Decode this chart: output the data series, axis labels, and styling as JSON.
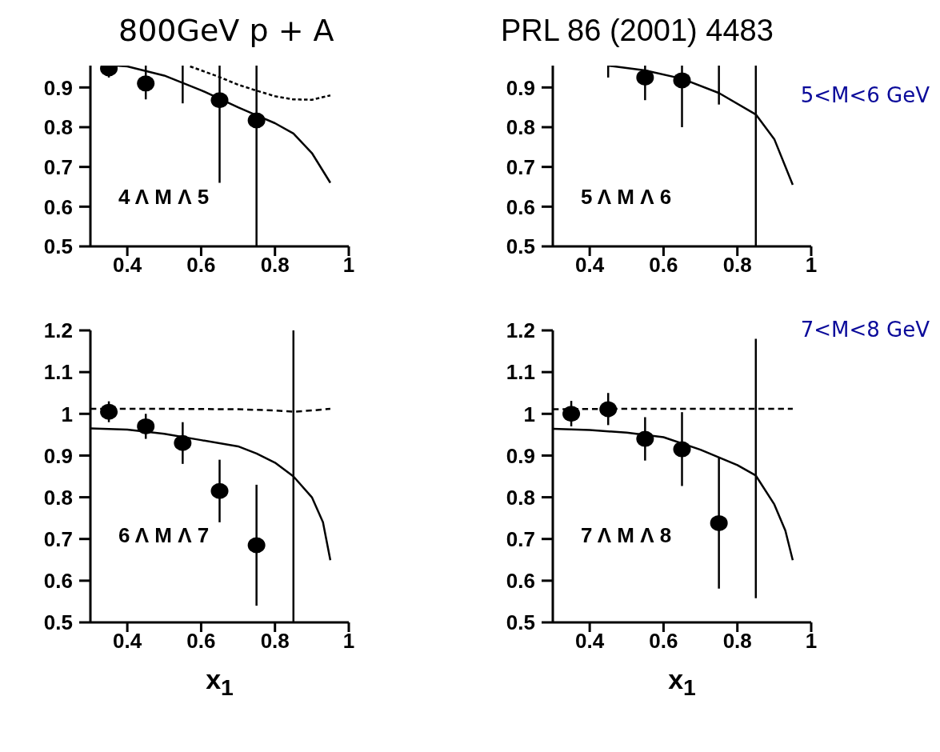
{
  "chart_data": [
    {
      "type": "scatter",
      "title": "800GeV p + A",
      "xlim": [
        0.3,
        1
      ],
      "xticks": [
        0.4,
        0.6,
        0.8,
        1
      ],
      "ylim": [
        0.5,
        0.955
      ],
      "yticks": [
        0.5,
        0.6,
        0.7,
        0.8,
        0.9
      ],
      "annotations": [
        "4 Λ M Λ 5"
      ],
      "series": [
        {
          "type": "scatter",
          "color": "#000000",
          "marker": "circle",
          "x": [
            0.35,
            0.45,
            0.65,
            0.75
          ],
          "values": [
            0.948,
            0.91,
            0.868,
            0.817
          ],
          "errors": [
            [
              0.925,
              0.948
            ],
            [
              0.87,
              0.955
            ],
            [
              0.66,
              0.955
            ],
            [
              0.5,
              0.955
            ]
          ]
        },
        {
          "type": "line",
          "color": "#000000",
          "line_style": "solid",
          "x": [
            0.55,
            0.55
          ],
          "values": [
            0.86,
            0.955
          ]
        },
        {
          "type": "line",
          "color": "#000000",
          "line_style": "solid",
          "x": [
            0.37,
            0.4,
            0.5,
            0.6,
            0.7,
            0.75,
            0.8,
            0.85,
            0.9,
            0.95
          ],
          "values": [
            0.955,
            0.953,
            0.93,
            0.893,
            0.85,
            0.83,
            0.81,
            0.784,
            0.735,
            0.66
          ]
        },
        {
          "type": "line",
          "color": "#000000",
          "line_style": "dashed",
          "x": [
            0.57,
            0.6,
            0.65,
            0.7,
            0.75,
            0.8,
            0.85,
            0.9,
            0.95
          ],
          "values": [
            0.953,
            0.943,
            0.926,
            0.907,
            0.892,
            0.878,
            0.87,
            0.869,
            0.88
          ]
        }
      ]
    },
    {
      "type": "scatter",
      "title": "PRL 86 (2001) 4483",
      "xlim": [
        0.3,
        1
      ],
      "xticks": [
        0.4,
        0.6,
        0.8,
        1
      ],
      "ylim": [
        0.5,
        0.955
      ],
      "yticks": [
        0.5,
        0.6,
        0.7,
        0.8,
        0.9
      ],
      "annotations": [
        "5 Λ M Λ 6",
        "5<M<6 GeV"
      ],
      "series": [
        {
          "type": "scatter",
          "color": "#000000",
          "marker": "circle",
          "x": [
            0.55,
            0.65
          ],
          "values": [
            0.925,
            0.918
          ],
          "errors": [
            [
              0.868,
              0.955
            ],
            [
              0.8,
              0.955
            ]
          ]
        },
        {
          "type": "line",
          "color": "#000000",
          "line_style": "solid",
          "x": [
            0.45,
            0.45
          ],
          "values": [
            0.925,
            0.955
          ]
        },
        {
          "type": "line",
          "color": "#000000",
          "line_style": "solid",
          "x": [
            0.75,
            0.75
          ],
          "values": [
            0.857,
            0.955
          ]
        },
        {
          "type": "line",
          "color": "#000000",
          "line_style": "solid",
          "x": [
            0.85,
            0.85
          ],
          "values": [
            0.5,
            0.955
          ]
        },
        {
          "type": "line",
          "color": "#000000",
          "line_style": "solid",
          "x": [
            0.45,
            0.55,
            0.65,
            0.75,
            0.85,
            0.9,
            0.95
          ],
          "values": [
            0.955,
            0.943,
            0.922,
            0.886,
            0.832,
            0.77,
            0.655
          ]
        }
      ]
    },
    {
      "type": "scatter",
      "xlabel": "x$_{1}$",
      "xlim": [
        0.3,
        1
      ],
      "xticks": [
        0.4,
        0.6,
        0.8,
        1
      ],
      "ylim": [
        0.5,
        1.2
      ],
      "yticks": [
        0.5,
        0.6,
        0.7,
        0.8,
        0.9,
        1,
        1.1,
        1.2
      ],
      "annotations": [
        "6 Λ M Λ 7"
      ],
      "series": [
        {
          "type": "scatter",
          "color": "#000000",
          "marker": "circle",
          "x": [
            0.35,
            0.45,
            0.55,
            0.65,
            0.75
          ],
          "values": [
            1.005,
            0.97,
            0.93,
            0.815,
            0.685
          ],
          "errors": [
            [
              0.98,
              1.03
            ],
            [
              0.94,
              1.0
            ],
            [
              0.88,
              0.98
            ],
            [
              0.74,
              0.89
            ],
            [
              0.54,
              0.83
            ]
          ]
        },
        {
          "type": "line",
          "color": "#000000",
          "line_style": "solid",
          "x": [
            0.85,
            0.85
          ],
          "values": [
            0.5,
            1.2
          ]
        },
        {
          "type": "line",
          "color": "#000000",
          "line_style": "solid",
          "x": [
            0.3,
            0.4,
            0.5,
            0.6,
            0.7,
            0.75,
            0.8,
            0.85,
            0.9,
            0.93,
            0.95
          ],
          "values": [
            0.965,
            0.962,
            0.952,
            0.937,
            0.922,
            0.905,
            0.883,
            0.85,
            0.8,
            0.74,
            0.649
          ]
        },
        {
          "type": "line",
          "color": "#000000",
          "line_style": "dashed",
          "x": [
            0.3,
            0.5,
            0.7,
            0.8,
            0.85,
            0.9,
            0.95
          ],
          "values": [
            1.012,
            1.012,
            1.011,
            1.008,
            1.005,
            1.008,
            1.012
          ]
        }
      ]
    },
    {
      "type": "scatter",
      "xlabel": "x$_{1}$",
      "xlim": [
        0.3,
        1
      ],
      "xticks": [
        0.4,
        0.6,
        0.8,
        1
      ],
      "ylim": [
        0.5,
        1.2
      ],
      "yticks": [
        0.5,
        0.6,
        0.7,
        0.8,
        0.9,
        1,
        1.1,
        1.2
      ],
      "annotations": [
        "7 Λ M Λ 8",
        "7<M<8 GeV"
      ],
      "series": [
        {
          "type": "scatter",
          "color": "#000000",
          "marker": "circle",
          "x": [
            0.35,
            0.45,
            0.55,
            0.65,
            0.75
          ],
          "values": [
            1.0,
            1.011,
            0.94,
            0.915,
            0.738
          ],
          "errors": [
            [
              0.97,
              1.031
            ],
            [
              0.973,
              1.05
            ],
            [
              0.888,
              0.992
            ],
            [
              0.827,
              1.004
            ],
            [
              0.581,
              0.895
            ]
          ]
        },
        {
          "type": "line",
          "color": "#000000",
          "line_style": "solid",
          "x": [
            0.85,
            0.85
          ],
          "values": [
            0.558,
            1.18
          ]
        },
        {
          "type": "line",
          "color": "#000000",
          "line_style": "solid",
          "x": [
            0.3,
            0.4,
            0.5,
            0.6,
            0.7,
            0.8,
            0.85,
            0.9,
            0.93,
            0.95
          ],
          "values": [
            0.964,
            0.961,
            0.955,
            0.944,
            0.914,
            0.877,
            0.852,
            0.783,
            0.72,
            0.649
          ]
        },
        {
          "type": "line",
          "color": "#000000",
          "line_style": "dashed",
          "x": [
            0.3,
            0.5,
            0.7,
            0.9,
            0.95
          ],
          "values": [
            1.011,
            1.012,
            1.012,
            1.012,
            1.012
          ]
        }
      ]
    }
  ]
}
